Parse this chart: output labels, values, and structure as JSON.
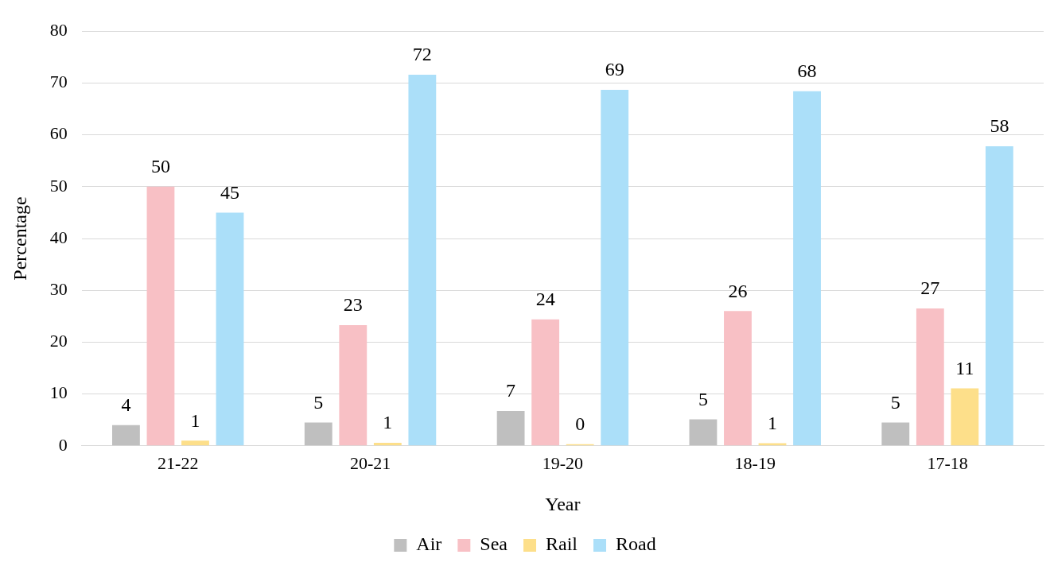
{
  "chart_data": {
    "type": "bar",
    "xlabel": "Year",
    "ylabel": "Percentage",
    "categories": [
      "21-22",
      "20-21",
      "19-20",
      "18-19",
      "17-18"
    ],
    "series": [
      {
        "name": "Air",
        "color": "#bfbfbf",
        "values": [
          4,
          4.5,
          6.7,
          5.1,
          4.5
        ],
        "value_labels": [
          "4",
          "5",
          "7",
          "5",
          "5"
        ]
      },
      {
        "name": "Sea",
        "color": "#f8c0c5",
        "values": [
          50,
          23.3,
          24.4,
          26,
          26.5
        ],
        "value_labels": [
          "50",
          "23",
          "24",
          "26",
          "27"
        ]
      },
      {
        "name": "Rail",
        "color": "#fddf8a",
        "values": [
          1,
          0.6,
          0.3,
          0.5,
          11.1
        ],
        "value_labels": [
          "1",
          "1",
          "0",
          "1",
          "11"
        ]
      },
      {
        "name": "Road",
        "color": "#abdff9",
        "values": [
          45,
          71.6,
          68.7,
          68.4,
          57.8
        ],
        "value_labels": [
          "45",
          "72",
          "69",
          "68",
          "58"
        ]
      }
    ],
    "ylim": [
      0,
      80
    ],
    "yticks": [
      0,
      10,
      20,
      30,
      40,
      50,
      60,
      70,
      80
    ],
    "grid": "y",
    "legend": "bottom"
  }
}
